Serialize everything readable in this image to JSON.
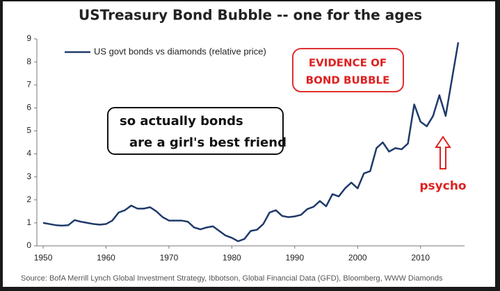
{
  "chart_data": {
    "type": "line",
    "title": "USTreasury Bond Bubble -- one for the ages",
    "source": "Source: BofA Merrill Lynch Global Investment Strategy, Ibbotson, Global Financial Data (GFD), Bloomberg, WWW Diamonds",
    "note": [
      "so actually bonds",
      "are a girl's best friend"
    ],
    "evidence_note": [
      "EVIDENCE OF",
      "BOND BUBBLE"
    ],
    "arrow_label": "psycho",
    "x": [
      1950,
      1951,
      1952,
      1953,
      1954,
      1955,
      1956,
      1957,
      1958,
      1959,
      1960,
      1961,
      1962,
      1963,
      1964,
      1965,
      1966,
      1967,
      1968,
      1969,
      1970,
      1971,
      1972,
      1973,
      1974,
      1975,
      1976,
      1977,
      1978,
      1979,
      1980,
      1981,
      1982,
      1983,
      1984,
      1985,
      1986,
      1987,
      1988,
      1989,
      1990,
      1991,
      1992,
      1993,
      1994,
      1995,
      1996,
      1997,
      1998,
      1999,
      2000,
      2001,
      2002,
      2003,
      2004,
      2005,
      2006,
      2007,
      2008,
      2009,
      2010,
      2011,
      2012,
      2013,
      2014,
      2015,
      2016
    ],
    "series": [
      {
        "name": "US govt bonds vs diamonds (relative price)",
        "color": "#1f3a6b",
        "values": [
          1.0,
          0.95,
          0.9,
          0.88,
          0.9,
          1.12,
          1.05,
          1.0,
          0.95,
          0.92,
          0.95,
          1.1,
          1.45,
          1.55,
          1.75,
          1.62,
          1.62,
          1.68,
          1.5,
          1.25,
          1.1,
          1.1,
          1.1,
          1.05,
          0.8,
          0.72,
          0.8,
          0.85,
          0.65,
          0.45,
          0.35,
          0.2,
          0.3,
          0.65,
          0.7,
          0.95,
          1.45,
          1.55,
          1.3,
          1.25,
          1.28,
          1.35,
          1.6,
          1.7,
          1.95,
          1.72,
          2.25,
          2.15,
          2.5,
          2.75,
          2.5,
          3.15,
          3.25,
          4.25,
          4.5,
          4.1,
          4.25,
          4.2,
          4.45,
          6.15,
          5.4,
          5.2,
          5.65,
          6.55,
          5.65,
          7.25,
          8.85
        ]
      }
    ],
    "xlim": [
      1949,
      2017
    ],
    "xticks": [
      1950,
      1960,
      1970,
      1980,
      1990,
      2000,
      2010
    ],
    "ylim": [
      0,
      9
    ],
    "yticks": [
      0,
      1,
      2,
      3,
      4,
      5,
      6,
      7,
      8,
      9
    ],
    "grid": false
  }
}
